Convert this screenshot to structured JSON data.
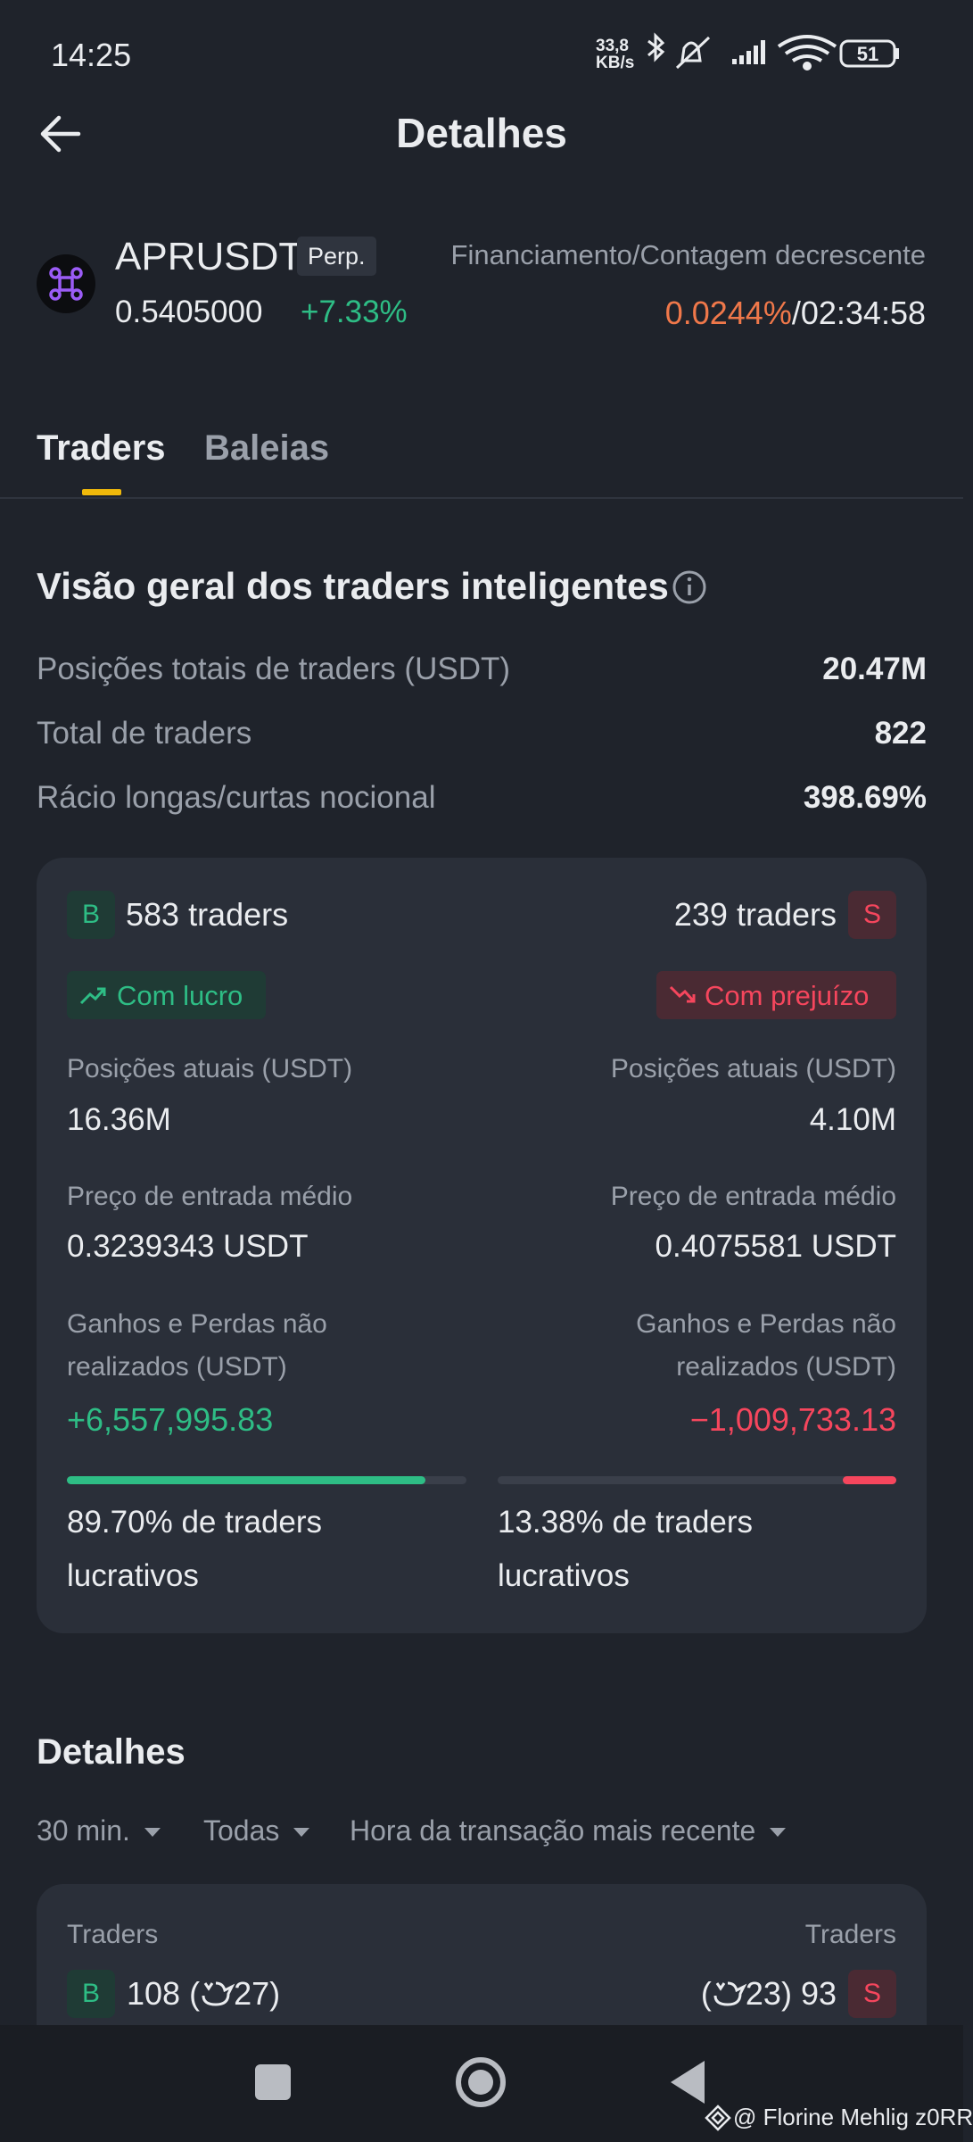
{
  "status_bar": {
    "time": "14:25",
    "network_speed": {
      "value": "33,8",
      "unit": "KB/s"
    },
    "battery": "51"
  },
  "header": {
    "title": "Detalhes"
  },
  "instrument": {
    "symbol": "APRUSDT",
    "tag": "Perp.",
    "price": "0.5405000",
    "change": "+7.33%",
    "funding_label": "Financiamento/Contagem decrescente",
    "funding_rate": "0.0244%",
    "separator": "/",
    "countdown": "02:34:58"
  },
  "tabs": [
    "Traders",
    "Baleias"
  ],
  "overview": {
    "title": "Visão geral dos traders inteligentes",
    "rows": [
      {
        "label": "Posições totais de traders (USDT)",
        "value": "20.47M"
      },
      {
        "label": "Total de traders",
        "value": "822"
      },
      {
        "label": "Rácio longas/curtas nocional",
        "value": "398.69%"
      }
    ]
  },
  "long": {
    "badge": "B",
    "traders": "583 traders",
    "status": "Com lucro",
    "positions_label": "Posições atuais (USDT)",
    "positions": "16.36M",
    "entry_label": "Preço de entrada médio",
    "entry": "0.3239343 USDT",
    "pnl_label": "Ganhos e Perdas não realizados (USDT)",
    "pnl": "+6,557,995.83",
    "profitable": {
      "value": 89.7,
      "label": "89.70%"
    },
    "profitable_text": "de traders lucrativos"
  },
  "short": {
    "badge": "S",
    "traders": "239 traders",
    "status": "Com prejuízo",
    "positions_label": "Posições atuais (USDT)",
    "positions": "4.10M",
    "entry_label": "Preço de entrada médio",
    "entry": "0.4075581 USDT",
    "pnl_label": "Ganhos e Perdas não realizados (USDT)",
    "pnl": "−1,009,733.13",
    "profitable": {
      "value": 13.38,
      "label": "13.38%"
    },
    "profitable_text": "de traders lucrativos"
  },
  "details": {
    "title": "Detalhes",
    "filters": [
      "30 min.",
      "Todas",
      "Hora da transação mais recente"
    ],
    "brackets": [
      "(",
      ")"
    ],
    "long": {
      "label": "Traders",
      "badge": "B",
      "count": "108",
      "whales": "27"
    },
    "short": {
      "label": "Traders",
      "badge": "S",
      "count": "93",
      "whales": "23"
    }
  },
  "watermark": "@ Florine Mehlig z0RR"
}
